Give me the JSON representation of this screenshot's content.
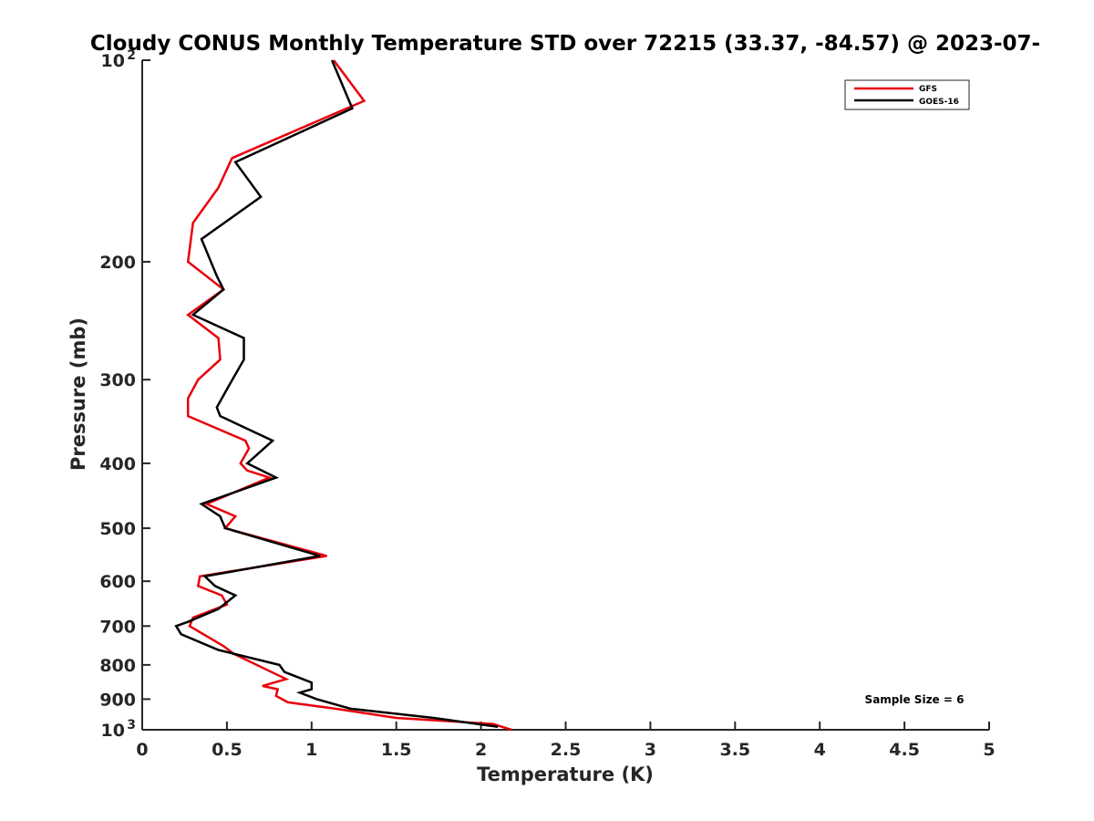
{
  "chart_data": {
    "type": "line",
    "title": "Cloudy CONUS Monthly Temperature STD over 72215 (33.37, -84.57) @ 2023-07-",
    "xlabel": "Temperature (K)",
    "ylabel": "Pressure (mb)",
    "xlim": [
      0,
      5
    ],
    "ylim": [
      100,
      1000
    ],
    "yscale": "log",
    "yreversed": true,
    "grid": false,
    "legend_position": "top-right",
    "x_ticks": [
      "0",
      "0.5",
      "1",
      "1.5",
      "2",
      "2.5",
      "3",
      "3.5",
      "4",
      "4.5",
      "5"
    ],
    "y_ticks": [
      {
        "value": 100,
        "label": "10",
        "exp": "2"
      },
      {
        "value": 200,
        "label": "200"
      },
      {
        "value": 300,
        "label": "300"
      },
      {
        "value": 400,
        "label": "400"
      },
      {
        "value": 500,
        "label": "500"
      },
      {
        "value": 600,
        "label": "600"
      },
      {
        "value": 700,
        "label": "700"
      },
      {
        "value": 800,
        "label": "800"
      },
      {
        "value": 900,
        "label": "900"
      },
      {
        "value": 1000,
        "label": "10",
        "exp": "3"
      }
    ],
    "annotation": "Sample Size = 6",
    "series": [
      {
        "name": "GFS",
        "color": "#e8000b",
        "points": [
          [
            1.13,
            100
          ],
          [
            1.31,
            115
          ],
          [
            0.53,
            140
          ],
          [
            0.45,
            155
          ],
          [
            0.3,
            175
          ],
          [
            0.27,
            200
          ],
          [
            0.48,
            220
          ],
          [
            0.27,
            240
          ],
          [
            0.45,
            260
          ],
          [
            0.46,
            280
          ],
          [
            0.33,
            300
          ],
          [
            0.27,
            320
          ],
          [
            0.27,
            340
          ],
          [
            0.61,
            370
          ],
          [
            0.63,
            380
          ],
          [
            0.58,
            400
          ],
          [
            0.62,
            410
          ],
          [
            0.75,
            420
          ],
          [
            0.38,
            460
          ],
          [
            0.55,
            480
          ],
          [
            0.49,
            500
          ],
          [
            1.09,
            550
          ],
          [
            0.34,
            590
          ],
          [
            0.33,
            610
          ],
          [
            0.47,
            630
          ],
          [
            0.5,
            650
          ],
          [
            0.3,
            680
          ],
          [
            0.28,
            700
          ],
          [
            0.48,
            750
          ],
          [
            0.54,
            770
          ],
          [
            0.85,
            840
          ],
          [
            0.71,
            860
          ],
          [
            0.8,
            870
          ],
          [
            0.79,
            890
          ],
          [
            0.86,
            910
          ],
          [
            1.14,
            930
          ],
          [
            1.5,
            960
          ],
          [
            2.07,
            980
          ],
          [
            2.18,
            1000
          ]
        ]
      },
      {
        "name": "GOES-16",
        "color": "#000000",
        "points": [
          [
            1.12,
            100
          ],
          [
            1.24,
            118
          ],
          [
            0.55,
            142
          ],
          [
            0.7,
            160
          ],
          [
            0.35,
            185
          ],
          [
            0.44,
            210
          ],
          [
            0.48,
            220
          ],
          [
            0.3,
            240
          ],
          [
            0.6,
            260
          ],
          [
            0.6,
            280
          ],
          [
            0.5,
            310
          ],
          [
            0.44,
            330
          ],
          [
            0.46,
            340
          ],
          [
            0.77,
            370
          ],
          [
            0.62,
            400
          ],
          [
            0.79,
            420
          ],
          [
            0.35,
            460
          ],
          [
            0.46,
            480
          ],
          [
            0.49,
            500
          ],
          [
            1.05,
            550
          ],
          [
            0.37,
            590
          ],
          [
            0.43,
            610
          ],
          [
            0.55,
            630
          ],
          [
            0.45,
            660
          ],
          [
            0.27,
            690
          ],
          [
            0.2,
            700
          ],
          [
            0.23,
            720
          ],
          [
            0.45,
            760
          ],
          [
            0.81,
            800
          ],
          [
            0.84,
            820
          ],
          [
            1.0,
            850
          ],
          [
            1.0,
            870
          ],
          [
            0.93,
            880
          ],
          [
            1.03,
            900
          ],
          [
            1.23,
            930
          ],
          [
            1.72,
            960
          ],
          [
            2.1,
            990
          ]
        ]
      }
    ]
  }
}
